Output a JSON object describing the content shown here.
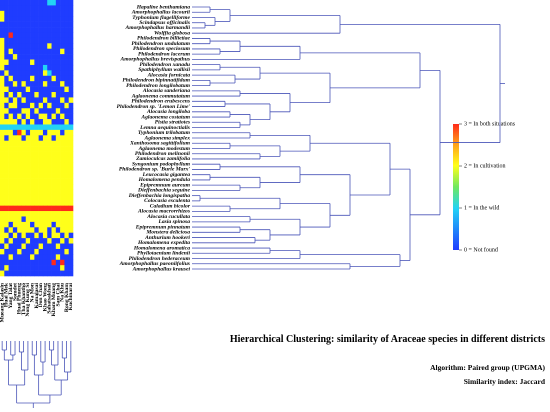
{
  "chart_data": {
    "type": "heatmap",
    "title": "Hierarchical Clustering: similarity of Araceae species in different districts",
    "algorithm": "Algorithm: Paired group (UPGMA)",
    "similarity": "Similarity index: Jaccard",
    "x": [
      "Mueang Kalasin",
      "Huai Mek",
      "Yang Talat",
      "Somdet",
      "Huai Phueng",
      "Tha Khantho",
      "Nong Kung Si",
      "Na Mon",
      "Kamalasai",
      "Don Chan",
      "Khao Wong",
      "Sahatsakhan",
      "Kham Muang",
      "Sam Chai",
      "Na Khu",
      "Rong Kham",
      "Kuchinarai"
    ],
    "y": [
      "Hapaline benthamiana",
      "Amorphophallus lacourii",
      "Typhonium flagelliforme",
      "Scindapsus officinalis",
      "Amorphophallus harmandii",
      "Wolffia globosa",
      "Philodendron billietiae",
      "Philodendron undulatum",
      "Philodendron speciosum",
      "Philodendron lacerum",
      "Amorphophallus brevispathus",
      "Philodendron xanadu",
      "Spathiphyllum wallisii",
      "Alocasia fornicata",
      "Philodendron bipinnatifidum",
      "Philodendron longilobatum",
      "Alocasia sanderiana",
      "Aglaonema commutatum",
      "Philodendron erubescens",
      "Philodendron sp. 'Lemon Lime'",
      "Alocasia longiloba",
      "Aglaonema costatum",
      "Pistia stratiotes",
      "Lemna aequinoctialis",
      "Typhonium trilobatum",
      "Aglaonema simplex",
      "Xanthosoma sagittifolium",
      "Aglaonema modestum",
      "Philodendron melinonii",
      "Zamioculcas zamiifolia",
      "Syngonium podophyllum",
      "Philodendron sp. 'Burle Marx'",
      "Leucocasia gigantea",
      "Homalomena pendula",
      "Epipremnum aureum",
      "Dieffenbachia seguine",
      "Dieffenbachia longispatha",
      "Colocasia esculenta",
      "Caladium bicolor",
      "Alocasia macrorrhizos",
      "Alocasia cucullata",
      "Lasia spinosa",
      "Epipremnum pinnatum",
      "Monstera deliciosa",
      "Anthurium hookeri",
      "Homalomena expedita",
      "Homalomena aromatica",
      "Phyllotaenium lindenii",
      "Philodendron hederaceum",
      "Amorphophallus paeoniifolius",
      "Amorphophallus krausei"
    ],
    "values": [
      [
        0,
        0,
        0,
        0,
        0,
        0,
        0,
        0,
        0,
        0,
        0,
        1,
        1,
        0,
        0,
        0,
        0
      ],
      [
        0,
        0,
        0,
        0,
        0,
        0,
        0,
        0,
        0,
        0,
        0,
        0,
        0,
        0,
        0,
        0,
        0
      ],
      [
        2,
        0,
        0,
        0,
        0,
        0,
        0,
        0,
        0,
        0,
        0,
        0,
        0,
        0,
        0,
        0,
        0
      ],
      [
        2,
        0,
        0,
        0,
        0,
        0,
        0,
        0,
        0,
        0,
        0,
        0,
        0,
        0,
        0,
        0,
        0
      ],
      [
        0,
        0,
        0,
        0,
        0,
        0,
        0,
        0,
        0,
        0,
        0,
        0,
        0,
        0,
        0,
        0,
        0
      ],
      [
        0,
        0,
        0,
        0,
        0,
        0,
        0,
        0,
        0,
        0,
        0,
        0,
        0,
        0,
        0,
        0,
        0
      ],
      [
        0,
        0,
        3,
        0,
        0,
        0,
        0,
        0,
        0,
        0,
        0,
        0,
        0,
        0,
        0,
        0,
        0
      ],
      [
        2,
        0,
        0,
        0,
        0,
        0,
        0,
        0,
        0,
        0,
        0,
        0,
        0,
        0,
        0,
        0,
        0
      ],
      [
        2,
        0,
        0,
        0,
        0,
        0,
        0,
        0,
        0,
        0,
        0,
        2,
        0,
        0,
        0,
        0,
        0
      ],
      [
        2,
        0,
        2,
        0,
        0,
        0,
        0,
        0,
        0,
        0,
        0,
        0,
        0,
        0,
        2,
        0,
        0
      ],
      [
        2,
        0,
        0,
        2,
        0,
        0,
        0,
        0,
        0,
        0,
        0,
        0,
        0,
        0,
        0,
        0,
        0
      ],
      [
        2,
        2,
        0,
        0,
        0,
        0,
        0,
        2,
        0,
        0,
        0,
        0,
        0,
        0,
        0,
        0,
        0
      ],
      [
        2,
        0,
        0,
        0,
        0,
        0,
        0,
        0,
        0,
        0,
        1,
        0,
        0,
        0,
        0,
        0,
        0
      ],
      [
        0,
        2,
        0,
        0,
        0,
        0,
        0,
        0,
        0,
        0,
        2,
        1,
        0,
        0,
        0,
        0,
        0
      ],
      [
        2,
        0,
        2,
        0,
        0,
        0,
        0,
        2,
        0,
        0,
        0,
        0,
        2,
        0,
        0,
        0,
        0
      ],
      [
        2,
        0,
        0,
        2,
        0,
        2,
        0,
        0,
        0,
        0,
        2,
        0,
        0,
        0,
        2,
        0,
        0
      ],
      [
        2,
        2,
        0,
        0,
        0,
        0,
        2,
        0,
        0,
        0,
        0,
        0,
        0,
        0,
        0,
        2,
        0
      ],
      [
        2,
        0,
        2,
        0,
        2,
        0,
        0,
        0,
        2,
        0,
        0,
        0,
        2,
        0,
        0,
        0,
        0
      ],
      [
        2,
        2,
        0,
        2,
        0,
        2,
        0,
        0,
        0,
        0,
        2,
        0,
        0,
        0,
        2,
        0,
        2
      ],
      [
        2,
        0,
        2,
        2,
        0,
        0,
        0,
        2,
        0,
        2,
        0,
        2,
        0,
        0,
        0,
        2,
        0
      ],
      [
        2,
        2,
        0,
        0,
        0,
        2,
        2,
        0,
        2,
        0,
        0,
        0,
        0,
        2,
        0,
        0,
        0
      ],
      [
        2,
        0,
        2,
        0,
        2,
        0,
        2,
        0,
        0,
        2,
        2,
        0,
        2,
        0,
        2,
        0,
        0
      ],
      [
        2,
        2,
        2,
        2,
        0,
        2,
        0,
        2,
        0,
        0,
        2,
        2,
        0,
        0,
        0,
        2,
        0
      ],
      [
        1,
        1,
        1,
        1,
        1,
        1,
        1,
        1,
        1,
        1,
        1,
        1,
        1,
        1,
        1,
        1,
        1
      ],
      [
        2,
        2,
        2,
        0,
        3,
        2,
        0,
        2,
        2,
        2,
        0,
        2,
        2,
        2,
        0,
        2,
        2
      ],
      [
        2,
        0,
        2,
        2,
        2,
        0,
        2,
        2,
        2,
        0,
        2,
        2,
        0,
        2,
        2,
        2,
        2
      ],
      [
        2,
        2,
        2,
        2,
        2,
        2,
        2,
        2,
        2,
        2,
        2,
        2,
        2,
        2,
        2,
        2,
        2
      ],
      [
        2,
        2,
        2,
        2,
        2,
        2,
        2,
        2,
        2,
        2,
        2,
        2,
        2,
        2,
        2,
        2,
        2
      ],
      [
        2,
        2,
        2,
        2,
        2,
        2,
        2,
        2,
        2,
        2,
        2,
        2,
        2,
        2,
        2,
        2,
        2
      ],
      [
        2,
        2,
        2,
        2,
        2,
        2,
        2,
        2,
        2,
        2,
        2,
        2,
        2,
        2,
        2,
        2,
        2
      ],
      [
        2,
        2,
        2,
        2,
        2,
        2,
        2,
        2,
        2,
        2,
        2,
        2,
        2,
        2,
        2,
        2,
        2
      ],
      [
        2,
        2,
        2,
        2,
        2,
        2,
        2,
        2,
        2,
        2,
        2,
        2,
        2,
        2,
        2,
        2,
        2
      ],
      [
        2,
        2,
        2,
        2,
        2,
        2,
        2,
        2,
        2,
        2,
        2,
        2,
        2,
        2,
        2,
        2,
        2
      ],
      [
        2,
        2,
        2,
        2,
        2,
        2,
        2,
        2,
        2,
        2,
        2,
        2,
        2,
        2,
        2,
        2,
        2
      ],
      [
        2,
        2,
        2,
        2,
        2,
        2,
        2,
        2,
        2,
        2,
        2,
        2,
        2,
        2,
        2,
        2,
        2
      ],
      [
        2,
        2,
        2,
        2,
        2,
        2,
        2,
        2,
        2,
        2,
        2,
        2,
        2,
        2,
        2,
        2,
        2
      ],
      [
        2,
        2,
        2,
        2,
        2,
        2,
        2,
        2,
        2,
        2,
        2,
        2,
        2,
        2,
        2,
        2,
        2
      ],
      [
        2,
        2,
        2,
        2,
        2,
        2,
        2,
        2,
        2,
        2,
        2,
        2,
        2,
        2,
        2,
        2,
        2
      ],
      [
        3,
        3,
        3,
        3,
        3,
        3,
        3,
        3,
        3,
        3,
        3,
        3,
        3,
        3,
        3,
        3,
        3
      ],
      [
        2,
        2,
        2,
        2,
        2,
        2,
        2,
        2,
        2,
        2,
        2,
        2,
        2,
        2,
        2,
        2,
        2
      ],
      [
        2,
        2,
        2,
        2,
        2,
        0,
        2,
        2,
        2,
        2,
        2,
        2,
        2,
        2,
        2,
        2,
        2
      ],
      [
        2,
        2,
        0,
        2,
        2,
        2,
        2,
        0,
        2,
        2,
        2,
        2,
        0,
        2,
        2,
        2,
        2
      ],
      [
        2,
        0,
        2,
        0,
        2,
        2,
        2,
        2,
        0,
        2,
        2,
        0,
        2,
        0,
        2,
        2,
        2
      ],
      [
        2,
        2,
        0,
        2,
        0,
        2,
        0,
        0,
        2,
        0,
        2,
        0,
        2,
        2,
        0,
        2,
        0
      ],
      [
        2,
        0,
        2,
        0,
        0,
        0,
        2,
        0,
        0,
        0,
        0,
        2,
        0,
        0,
        2,
        0,
        2
      ],
      [
        0,
        2,
        0,
        0,
        0,
        2,
        0,
        0,
        0,
        2,
        0,
        0,
        0,
        2,
        0,
        0,
        0
      ],
      [
        2,
        0,
        0,
        0,
        2,
        0,
        0,
        0,
        2,
        0,
        0,
        0,
        0,
        0,
        0,
        2,
        0
      ],
      [
        0,
        0,
        2,
        0,
        0,
        0,
        0,
        2,
        0,
        0,
        0,
        0,
        0,
        2,
        0,
        0,
        0
      ],
      [
        0,
        0,
        0,
        0,
        0,
        0,
        0,
        0,
        0,
        0,
        0,
        0,
        3,
        0,
        3,
        0,
        0
      ],
      [
        0,
        2,
        0,
        0,
        0,
        0,
        0,
        0,
        0,
        0,
        0,
        0,
        0,
        0,
        2,
        0,
        0
      ],
      [
        2,
        0,
        0,
        0,
        0,
        0,
        0,
        0,
        0,
        0,
        0,
        0,
        0,
        0,
        0,
        0,
        0
      ]
    ],
    "colors": [
      "#1f3cff",
      "#22d3f5",
      "#ffff1a",
      "#ff2a1a"
    ],
    "clim": [
      0,
      3
    ],
    "cticks": [
      {
        "value": 3,
        "label": "3 = In both situations"
      },
      {
        "value": 2,
        "label": "2 = In cultivation"
      },
      {
        "value": 1,
        "label": "1 = In the wild"
      },
      {
        "value": 0,
        "label": "0 = Not found"
      }
    ]
  }
}
